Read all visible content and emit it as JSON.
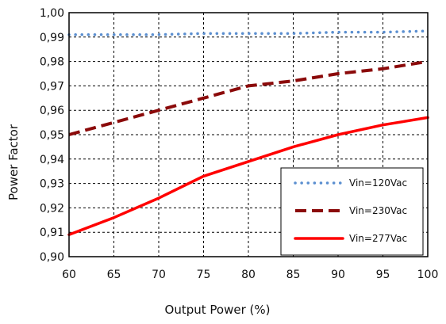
{
  "chart_data": {
    "type": "line",
    "xlabel": "Output Power (%)",
    "ylabel": "Power Factor",
    "xlim": [
      60,
      100
    ],
    "ylim": [
      0.9,
      1.0
    ],
    "x_ticks": [
      60,
      65,
      70,
      75,
      80,
      85,
      90,
      95,
      100
    ],
    "y_ticks": [
      0.9,
      0.91,
      0.92,
      0.93,
      0.94,
      0.95,
      0.96,
      0.97,
      0.98,
      0.99,
      1.0
    ],
    "y_tick_labels": [
      "0,90",
      "0,91",
      "0,92",
      "0,93",
      "0,94",
      "0,95",
      "0,96",
      "0,97",
      "0,98",
      "0,99",
      "1,00"
    ],
    "x_tick_labels": [
      "60",
      "65",
      "70",
      "75",
      "80",
      "85",
      "90",
      "95",
      "100"
    ],
    "grid": "dashed",
    "legend_position": "bottom-right",
    "series": [
      {
        "name": "Vin=120Vac",
        "style": "dotted",
        "color": "#5b8fd0",
        "x": [
          60,
          65,
          70,
          75,
          80,
          85,
          90,
          95,
          100
        ],
        "values": [
          0.991,
          0.991,
          0.991,
          0.9915,
          0.9915,
          0.9915,
          0.992,
          0.992,
          0.9925
        ]
      },
      {
        "name": "Vin=230Vac",
        "style": "dashed",
        "color": "#8b0a0a",
        "x": [
          60,
          65,
          70,
          75,
          80,
          85,
          90,
          95,
          100
        ],
        "values": [
          0.95,
          0.955,
          0.96,
          0.965,
          0.97,
          0.972,
          0.975,
          0.977,
          0.98
        ]
      },
      {
        "name": "Vin=277Vac",
        "style": "solid",
        "color": "#ff0000",
        "x": [
          60,
          65,
          70,
          75,
          80,
          85,
          90,
          95,
          100
        ],
        "values": [
          0.909,
          0.916,
          0.924,
          0.933,
          0.939,
          0.945,
          0.95,
          0.954,
          0.957
        ]
      }
    ]
  }
}
